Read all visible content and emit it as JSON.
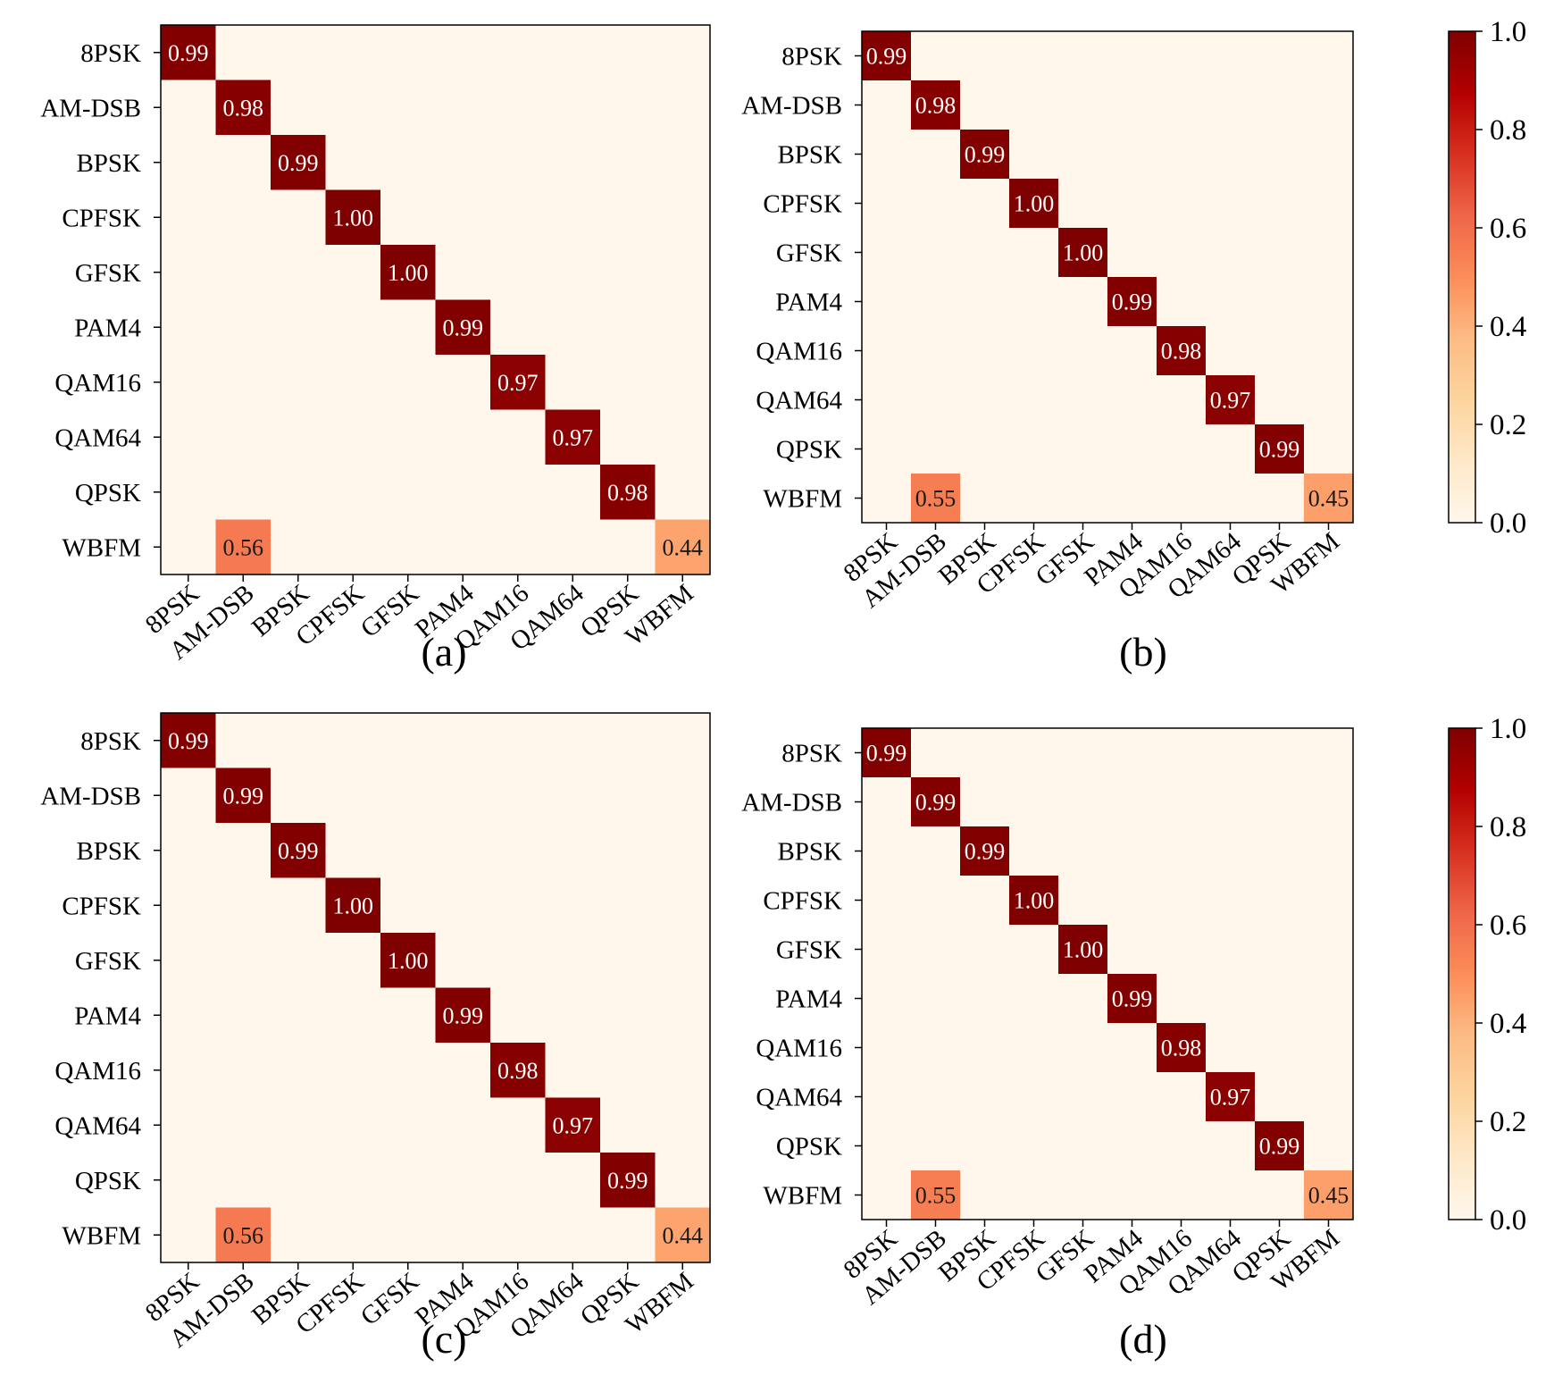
{
  "chart_data": [
    {
      "type": "heatmap",
      "panel_label": "(a)",
      "x_categories": [
        "8PSK",
        "AM-DSB",
        "BPSK",
        "CPFSK",
        "GFSK",
        "PAM4",
        "QAM16",
        "QAM64",
        "QPSK",
        "WBFM"
      ],
      "y_categories": [
        "8PSK",
        "AM-DSB",
        "BPSK",
        "CPFSK",
        "GFSK",
        "PAM4",
        "QAM16",
        "QAM64",
        "QPSK",
        "WBFM"
      ],
      "labeled_cells": [
        {
          "row": 0,
          "col": 0,
          "value": 0.99,
          "label": "0.99"
        },
        {
          "row": 1,
          "col": 1,
          "value": 0.98,
          "label": "0.98"
        },
        {
          "row": 2,
          "col": 2,
          "value": 0.99,
          "label": "0.99"
        },
        {
          "row": 3,
          "col": 3,
          "value": 1.0,
          "label": "1.00"
        },
        {
          "row": 4,
          "col": 4,
          "value": 1.0,
          "label": "1.00"
        },
        {
          "row": 5,
          "col": 5,
          "value": 0.99,
          "label": "0.99"
        },
        {
          "row": 6,
          "col": 6,
          "value": 0.97,
          "label": "0.97"
        },
        {
          "row": 7,
          "col": 7,
          "value": 0.97,
          "label": "0.97"
        },
        {
          "row": 8,
          "col": 8,
          "value": 0.98,
          "label": "0.98"
        },
        {
          "row": 9,
          "col": 1,
          "value": 0.56,
          "label": "0.56"
        },
        {
          "row": 9,
          "col": 9,
          "value": 0.44,
          "label": "0.44"
        }
      ],
      "colorbar": false
    },
    {
      "type": "heatmap",
      "panel_label": "(b)",
      "x_categories": [
        "8PSK",
        "AM-DSB",
        "BPSK",
        "CPFSK",
        "GFSK",
        "PAM4",
        "QAM16",
        "QAM64",
        "QPSK",
        "WBFM"
      ],
      "y_categories": [
        "8PSK",
        "AM-DSB",
        "BPSK",
        "CPFSK",
        "GFSK",
        "PAM4",
        "QAM16",
        "QAM64",
        "QPSK",
        "WBFM"
      ],
      "labeled_cells": [
        {
          "row": 0,
          "col": 0,
          "value": 0.99,
          "label": "0.99"
        },
        {
          "row": 1,
          "col": 1,
          "value": 0.98,
          "label": "0.98"
        },
        {
          "row": 2,
          "col": 2,
          "value": 0.99,
          "label": "0.99"
        },
        {
          "row": 3,
          "col": 3,
          "value": 1.0,
          "label": "1.00"
        },
        {
          "row": 4,
          "col": 4,
          "value": 1.0,
          "label": "1.00"
        },
        {
          "row": 5,
          "col": 5,
          "value": 0.99,
          "label": "0.99"
        },
        {
          "row": 6,
          "col": 6,
          "value": 0.98,
          "label": "0.98"
        },
        {
          "row": 7,
          "col": 7,
          "value": 0.97,
          "label": "0.97"
        },
        {
          "row": 8,
          "col": 8,
          "value": 0.99,
          "label": "0.99"
        },
        {
          "row": 9,
          "col": 1,
          "value": 0.55,
          "label": "0.55"
        },
        {
          "row": 9,
          "col": 9,
          "value": 0.45,
          "label": "0.45"
        }
      ],
      "colorbar": true
    },
    {
      "type": "heatmap",
      "panel_label": "(c)",
      "x_categories": [
        "8PSK",
        "AM-DSB",
        "BPSK",
        "CPFSK",
        "GFSK",
        "PAM4",
        "QAM16",
        "QAM64",
        "QPSK",
        "WBFM"
      ],
      "y_categories": [
        "8PSK",
        "AM-DSB",
        "BPSK",
        "CPFSK",
        "GFSK",
        "PAM4",
        "QAM16",
        "QAM64",
        "QPSK",
        "WBFM"
      ],
      "labeled_cells": [
        {
          "row": 0,
          "col": 0,
          "value": 0.99,
          "label": "0.99"
        },
        {
          "row": 1,
          "col": 1,
          "value": 0.99,
          "label": "0.99"
        },
        {
          "row": 2,
          "col": 2,
          "value": 0.99,
          "label": "0.99"
        },
        {
          "row": 3,
          "col": 3,
          "value": 1.0,
          "label": "1.00"
        },
        {
          "row": 4,
          "col": 4,
          "value": 1.0,
          "label": "1.00"
        },
        {
          "row": 5,
          "col": 5,
          "value": 0.99,
          "label": "0.99"
        },
        {
          "row": 6,
          "col": 6,
          "value": 0.98,
          "label": "0.98"
        },
        {
          "row": 7,
          "col": 7,
          "value": 0.97,
          "label": "0.97"
        },
        {
          "row": 8,
          "col": 8,
          "value": 0.99,
          "label": "0.99"
        },
        {
          "row": 9,
          "col": 1,
          "value": 0.56,
          "label": "0.56"
        },
        {
          "row": 9,
          "col": 9,
          "value": 0.44,
          "label": "0.44"
        }
      ],
      "colorbar": false
    },
    {
      "type": "heatmap",
      "panel_label": "(d)",
      "x_categories": [
        "8PSK",
        "AM-DSB",
        "BPSK",
        "CPFSK",
        "GFSK",
        "PAM4",
        "QAM16",
        "QAM64",
        "QPSK",
        "WBFM"
      ],
      "y_categories": [
        "8PSK",
        "AM-DSB",
        "BPSK",
        "CPFSK",
        "GFSK",
        "PAM4",
        "QAM16",
        "QAM64",
        "QPSK",
        "WBFM"
      ],
      "labeled_cells": [
        {
          "row": 0,
          "col": 0,
          "value": 0.99,
          "label": "0.99"
        },
        {
          "row": 1,
          "col": 1,
          "value": 0.99,
          "label": "0.99"
        },
        {
          "row": 2,
          "col": 2,
          "value": 0.99,
          "label": "0.99"
        },
        {
          "row": 3,
          "col": 3,
          "value": 1.0,
          "label": "1.00"
        },
        {
          "row": 4,
          "col": 4,
          "value": 1.0,
          "label": "1.00"
        },
        {
          "row": 5,
          "col": 5,
          "value": 0.99,
          "label": "0.99"
        },
        {
          "row": 6,
          "col": 6,
          "value": 0.98,
          "label": "0.98"
        },
        {
          "row": 7,
          "col": 7,
          "value": 0.97,
          "label": "0.97"
        },
        {
          "row": 8,
          "col": 8,
          "value": 0.99,
          "label": "0.99"
        },
        {
          "row": 9,
          "col": 1,
          "value": 0.55,
          "label": "0.55"
        },
        {
          "row": 9,
          "col": 9,
          "value": 0.45,
          "label": "0.45"
        }
      ],
      "colorbar": true
    }
  ],
  "colorbar": {
    "range": [
      0.0,
      1.0
    ],
    "ticks": [
      0.0,
      0.2,
      0.4,
      0.6,
      0.8,
      1.0
    ],
    "tick_labels": [
      "0.0",
      "0.2",
      "0.4",
      "0.6",
      "0.8",
      "1.0"
    ],
    "colormap": "OrRd",
    "colors": [
      "#fff7ec",
      "#fee8c8",
      "#fdd49e",
      "#fdbb84",
      "#fc8d59",
      "#ef6548",
      "#d7301f",
      "#b30000",
      "#7f0000"
    ]
  }
}
